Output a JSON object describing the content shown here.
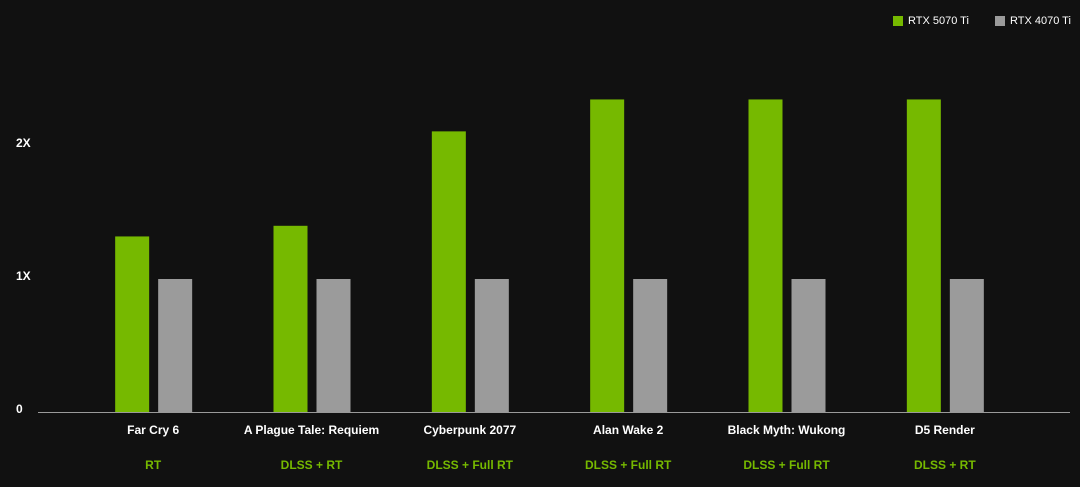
{
  "chart_data": {
    "type": "bar",
    "categories": [
      "Far Cry 6",
      "A Plague Tale: Requiem",
      "Cyberpunk 2077",
      "Alan Wake 2",
      "Black Myth: Wukong",
      "D5 Render"
    ],
    "settings": [
      "RT",
      "DLSS + RT",
      "DLSS + Full RT",
      "DLSS + Full RT",
      "DLSS + Full RT",
      "DLSS + RT"
    ],
    "series": [
      {
        "name": "RTX 5070 Ti",
        "color": "#76b900",
        "values": [
          1.32,
          1.4,
          2.11,
          2.35,
          2.35,
          2.35
        ]
      },
      {
        "name": "RTX 4070 Ti",
        "color": "#9b9b9b",
        "values": [
          1,
          1,
          1,
          1,
          1,
          1
        ]
      }
    ],
    "ylim": [
      0,
      3
    ],
    "yticks": [
      0,
      {
        "value": 1,
        "label": "1X"
      },
      {
        "value": 2,
        "label": "2X"
      }
    ],
    "grid": false,
    "legend": "top-right"
  }
}
